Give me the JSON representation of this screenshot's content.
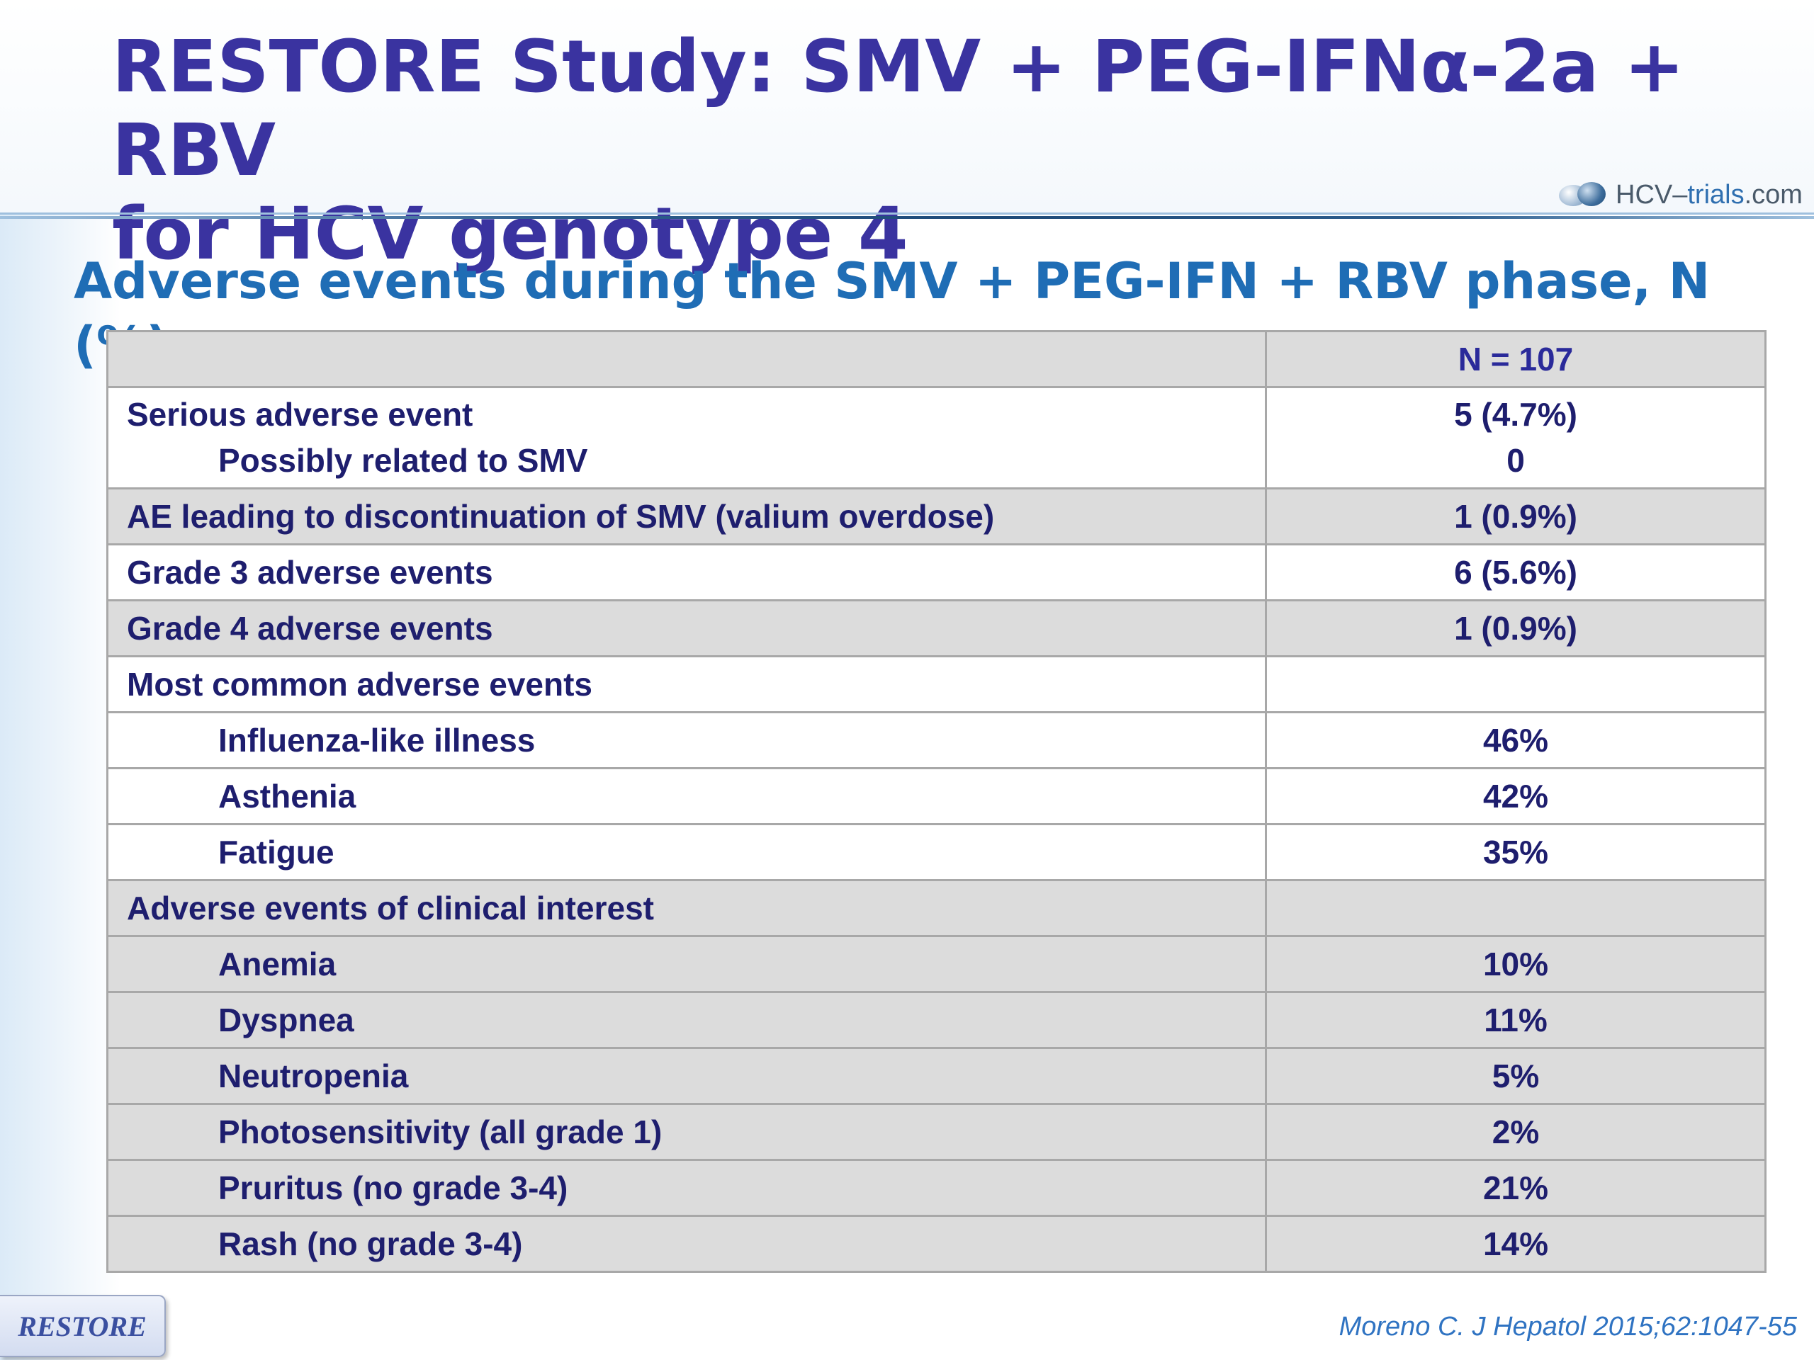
{
  "slide": {
    "title_line1": "RESTORE Study: SMV + PEG-IFNα-2a + RBV",
    "title_line2": "for HCV genotype 4",
    "logo_prefix": "HCV–",
    "logo_trials": "trials",
    "logo_suffix": ".com",
    "subtitle": "Adverse events during the SMV + PEG-IFN + RBV phase, N (%)"
  },
  "table": {
    "header": {
      "label": "",
      "value": "N = 107"
    },
    "rows": [
      {
        "label": "Serious adverse event",
        "value": "5 (4.7%)"
      },
      {
        "label": "Possibly related to SMV",
        "value": "0"
      },
      {
        "label": "AE leading to discontinuation of SMV (valium overdose)",
        "value": "1 (0.9%)"
      },
      {
        "label": "Grade 3 adverse events",
        "value": "6 (5.6%)"
      },
      {
        "label": "Grade 4 adverse events",
        "value": "1 (0.9%)"
      },
      {
        "label": "Most common adverse events",
        "value": ""
      },
      {
        "label": "Influenza-like illness",
        "value": "46%"
      },
      {
        "label": "Asthenia",
        "value": "42%"
      },
      {
        "label": "Fatigue",
        "value": "35%"
      },
      {
        "label": "Adverse events of clinical interest",
        "value": ""
      },
      {
        "label": "Anemia",
        "value": "10%"
      },
      {
        "label": "Dyspnea",
        "value": "11%"
      },
      {
        "label": "Neutropenia",
        "value": "5%"
      },
      {
        "label": "Photosensitivity (all grade 1)",
        "value": "2%"
      },
      {
        "label": "Pruritus (no grade 3-4)",
        "value": "21%"
      },
      {
        "label": "Rash (no grade 3-4)",
        "value": "14%"
      }
    ]
  },
  "footer": {
    "restore_button": "RESTORE",
    "citation": "Moreno C. J Hepatol 2015;62:1047-55"
  },
  "colors": {
    "title": "#3a33a0",
    "subtitle": "#1f6db5",
    "table_text": "#1e1e6e",
    "row_grey": "#dcdcdc",
    "citation": "#2f73c2"
  }
}
